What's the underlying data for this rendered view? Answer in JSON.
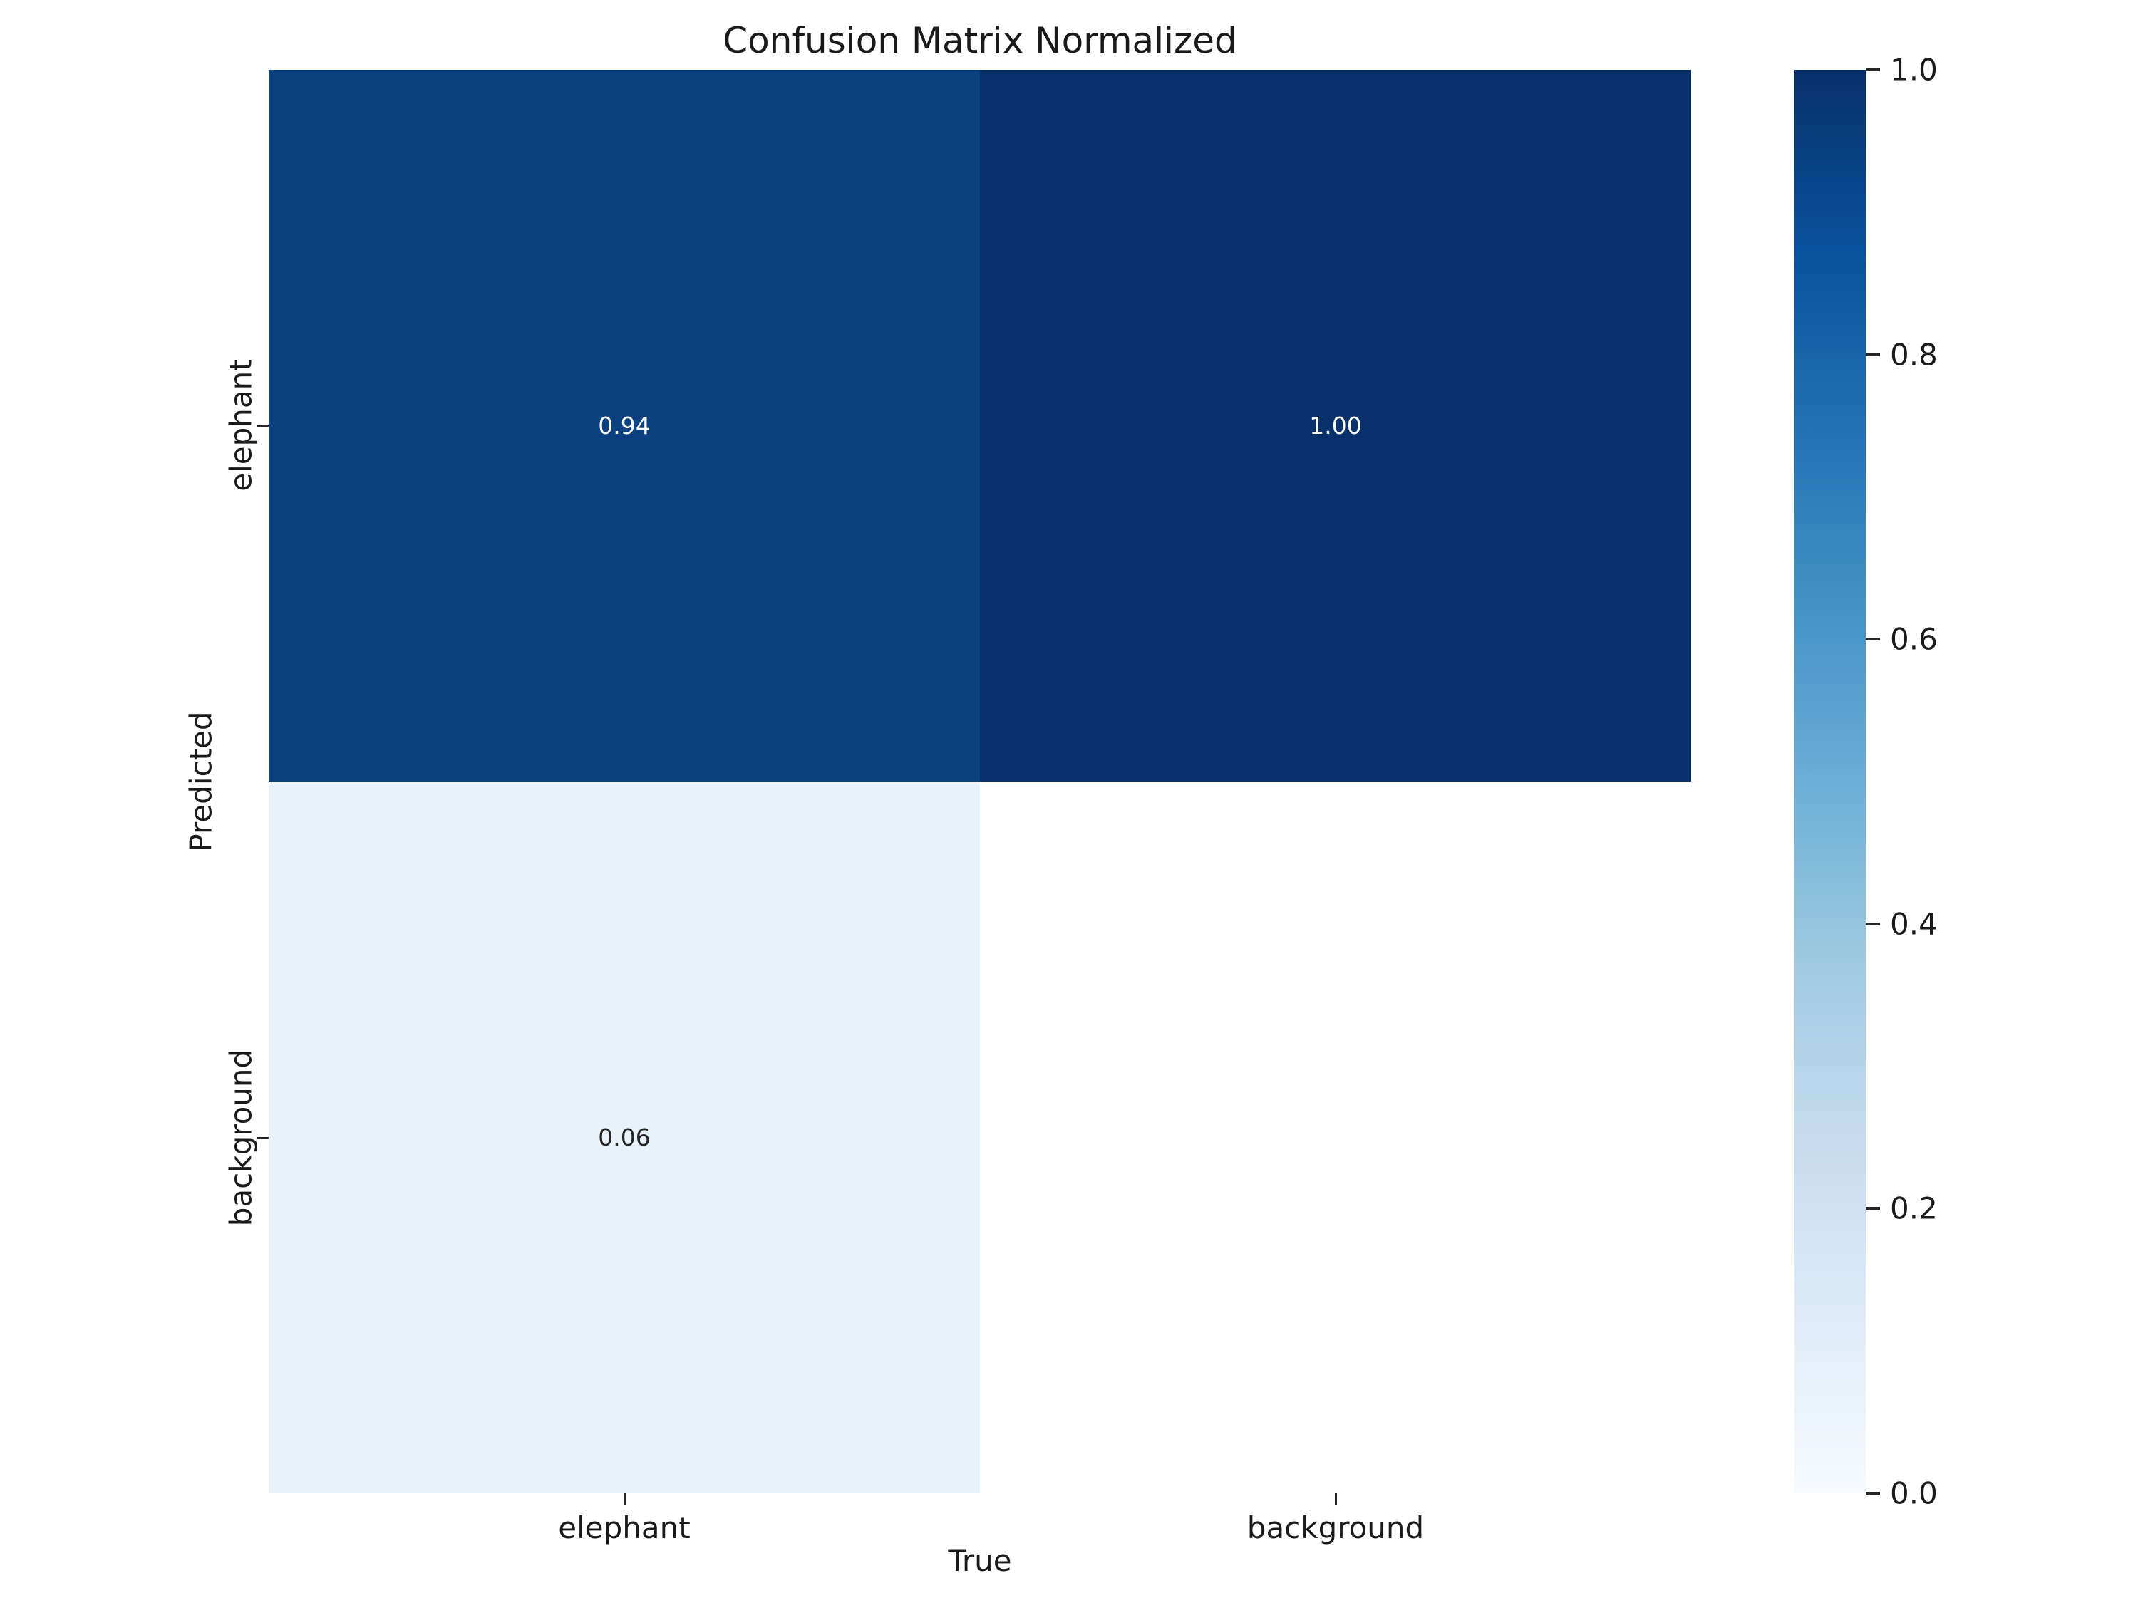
{
  "title": "Confusion Matrix Normalized",
  "chart_data": {
    "type": "heatmap",
    "title": "Confusion Matrix Normalized",
    "xlabel": "True",
    "ylabel": "Predicted",
    "x_categories": [
      "elephant",
      "background"
    ],
    "y_categories": [
      "elephant",
      "background"
    ],
    "matrix": [
      [
        0.94,
        1.0
      ],
      [
        0.06,
        null
      ]
    ],
    "annotations": [
      [
        "0.94",
        "1.00"
      ],
      [
        "0.06",
        ""
      ]
    ],
    "colormap": "Blues",
    "value_range": [
      0.0,
      1.0
    ],
    "grid": false,
    "legend_position": "right-colorbar",
    "colors": {
      "cell_r0c0": "#0b4180",
      "cell_r0c1": "#08306b",
      "cell_r1c0": "#e9f1fa",
      "cell_r1c1": "#ffffff",
      "cmap_min": "#f7fbff",
      "cmap_max": "#08306b",
      "annotation_on_dark": "#ffffff",
      "annotation_on_light": "#262626"
    }
  },
  "cells": [
    {
      "row": "elephant",
      "col": "elephant",
      "label": "0.94"
    },
    {
      "row": "elephant",
      "col": "background",
      "label": "1.00"
    },
    {
      "row": "background",
      "col": "elephant",
      "label": "0.06"
    },
    {
      "row": "background",
      "col": "background",
      "label": ""
    }
  ],
  "axes": {
    "xlabel": "True",
    "ylabel": "Predicted",
    "x_ticks": [
      {
        "label": "elephant"
      },
      {
        "label": "background"
      }
    ],
    "y_ticks": [
      {
        "label": "elephant"
      },
      {
        "label": "background"
      }
    ]
  },
  "colorbar": {
    "ticks": [
      {
        "label": "1.0"
      },
      {
        "label": "0.8"
      },
      {
        "label": "0.6"
      },
      {
        "label": "0.4"
      },
      {
        "label": "0.2"
      },
      {
        "label": "0.0"
      }
    ]
  }
}
